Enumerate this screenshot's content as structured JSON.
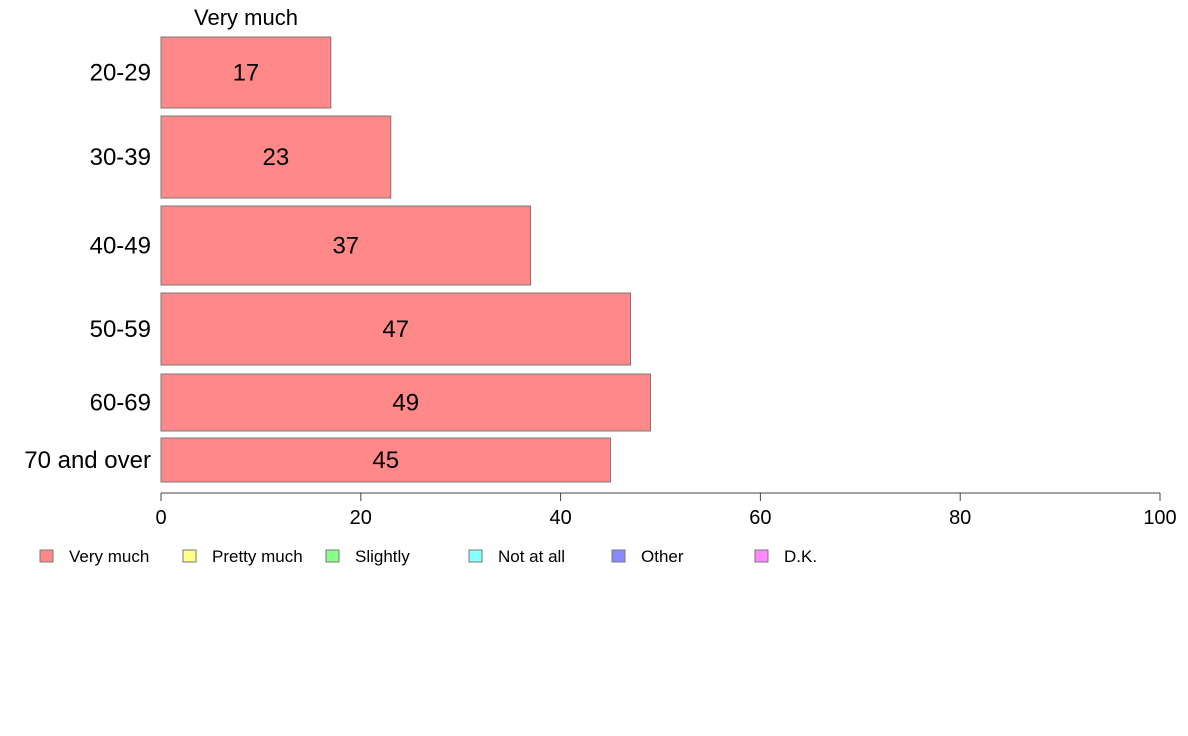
{
  "chart_data": {
    "type": "bar",
    "orientation": "horizontal",
    "series_title": "Very much",
    "categories": [
      "20-29",
      "30-39",
      "40-49",
      "50-59",
      "60-69",
      "70 and over"
    ],
    "series": [
      {
        "name": "Very much",
        "values": [
          17,
          23,
          37,
          47,
          49,
          45
        ],
        "color": "#ff8888"
      }
    ],
    "xlim": [
      0,
      100
    ],
    "xticks": [
      0,
      20,
      40,
      60,
      80,
      100
    ],
    "legend": {
      "position": "bottom",
      "items": [
        {
          "label": "Very much",
          "color": "#ff8888"
        },
        {
          "label": "Pretty much",
          "color": "#ffff88"
        },
        {
          "label": "Slightly",
          "color": "#88ff88"
        },
        {
          "label": "Not at all",
          "color": "#88ffff"
        },
        {
          "label": "Other",
          "color": "#8888ff"
        },
        {
          "label": "D.K.",
          "color": "#ff88ff"
        }
      ]
    },
    "grid": false
  }
}
